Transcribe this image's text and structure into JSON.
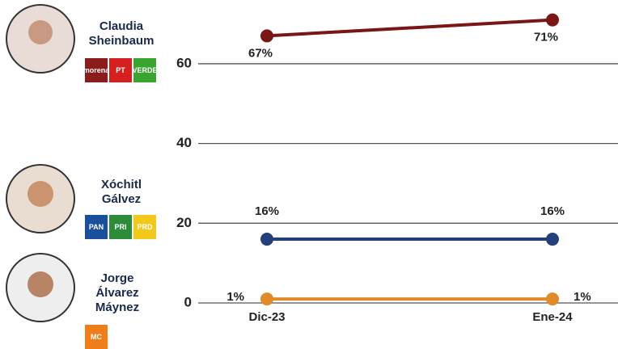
{
  "chart_data": {
    "type": "line",
    "categories": [
      "Dic-23",
      "Ene-24"
    ],
    "series": [
      {
        "name": "Claudia Sheinbaum",
        "color": "#7a1616",
        "values": [
          67,
          71
        ],
        "value_labels": [
          "67%",
          "71%"
        ],
        "parties": [
          "morena",
          "PT",
          "VERDE"
        ]
      },
      {
        "name": "Xóchitl Gálvez",
        "color": "#23407a",
        "values": [
          16,
          16
        ],
        "value_labels": [
          "16%",
          "16%"
        ],
        "parties": [
          "PAN",
          "PRI",
          "PRD"
        ]
      },
      {
        "name": "Jorge Álvarez Máynez",
        "color": "#e08a2a",
        "values": [
          1,
          1
        ],
        "value_labels": [
          "1%",
          "1%"
        ],
        "parties": [
          "MC"
        ]
      }
    ],
    "ylim": [
      0,
      76
    ],
    "yticks": [
      0,
      20,
      40,
      60
    ],
    "grid": true
  }
}
